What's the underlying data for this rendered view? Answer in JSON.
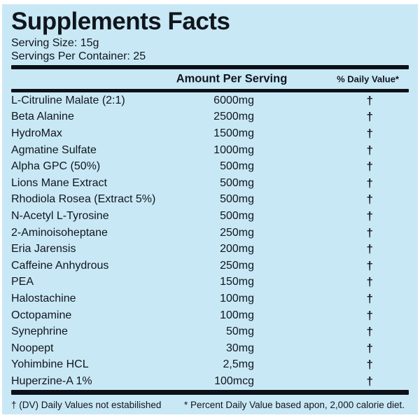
{
  "title": "Supplements Facts",
  "serving_size": "Serving Size: 15g",
  "servings_per_container": "Servings Per Container: 25",
  "columns": {
    "amount_header": "Amount Per Serving",
    "daily_value_header": "% Daily Value*"
  },
  "rows": [
    {
      "name": "L-Citruline Malate (2:1)",
      "amount": "6000mg",
      "daily_value": "†"
    },
    {
      "name": "Beta Alanine",
      "amount": "2500mg",
      "daily_value": "†"
    },
    {
      "name": "HydroMax",
      "amount": "1500mg",
      "daily_value": "†"
    },
    {
      "name": "Agmatine Sulfate",
      "amount": "1000mg",
      "daily_value": "†"
    },
    {
      "name": "Alpha GPC (50%)",
      "amount": "500mg",
      "daily_value": "†"
    },
    {
      "name": "Lions Mane Extract",
      "amount": "500mg",
      "daily_value": "†"
    },
    {
      "name": "Rhodiola Rosea (Extract 5%)",
      "amount": "500mg",
      "daily_value": "†"
    },
    {
      "name": "N-Acetyl L-Tyrosine",
      "amount": "500mg",
      "daily_value": "†"
    },
    {
      "name": "2-Aminoisoheptane",
      "amount": "250mg",
      "daily_value": "†"
    },
    {
      "name": "Eria Jarensis",
      "amount": "200mg",
      "daily_value": "†"
    },
    {
      "name": "Caffeine Anhydrous",
      "amount": "250mg",
      "daily_value": "†"
    },
    {
      "name": "PEA",
      "amount": "150mg",
      "daily_value": "†"
    },
    {
      "name": "Halostachine",
      "amount": "100mg",
      "daily_value": "†"
    },
    {
      "name": "Octopamine",
      "amount": "100mg",
      "daily_value": "†"
    },
    {
      "name": "Synephrine",
      "amount": "50mg",
      "daily_value": "†"
    },
    {
      "name": "Noopept",
      "amount": "30mg",
      "daily_value": "†"
    },
    {
      "name": "Yohimbine HCL",
      "amount": "2,5mg",
      "daily_value": "†"
    },
    {
      "name": "Huperzine-A 1%",
      "amount": "100mcg",
      "daily_value": "†"
    }
  ],
  "footnotes": {
    "left": "† (DV) Daily Values not estabilished",
    "right": "* Percent Daily Value based apon, 2,000 calorie diet."
  },
  "colors": {
    "background": "#c9e8f6",
    "text": "#10161d",
    "rule": "#0c1117",
    "page_border": "#ffffff"
  }
}
